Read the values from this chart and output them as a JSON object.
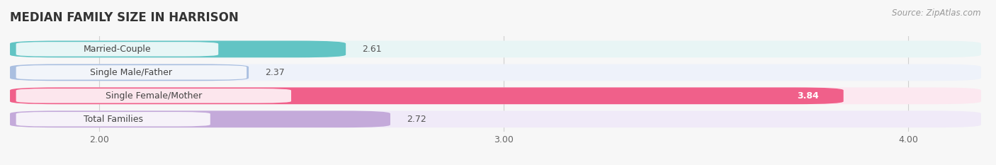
{
  "title": "MEDIAN FAMILY SIZE IN HARRISON",
  "source": "Source: ZipAtlas.com",
  "categories": [
    "Married-Couple",
    "Single Male/Father",
    "Single Female/Mother",
    "Total Families"
  ],
  "values": [
    2.61,
    2.37,
    3.84,
    2.72
  ],
  "bar_colors": [
    "#62C4C4",
    "#AABFE0",
    "#F0608A",
    "#C4AADA"
  ],
  "bar_bg_colors": [
    "#E8F5F5",
    "#EEF2FA",
    "#FCE8F0",
    "#F0EAF8"
  ],
  "xlim_min": 1.78,
  "xlim_max": 4.18,
  "xticks": [
    2.0,
    3.0,
    4.0
  ],
  "xtick_labels": [
    "2.00",
    "3.00",
    "4.00"
  ],
  "background_color": "#f7f7f7",
  "title_fontsize": 12,
  "label_fontsize": 9,
  "value_fontsize": 9,
  "source_fontsize": 8.5
}
